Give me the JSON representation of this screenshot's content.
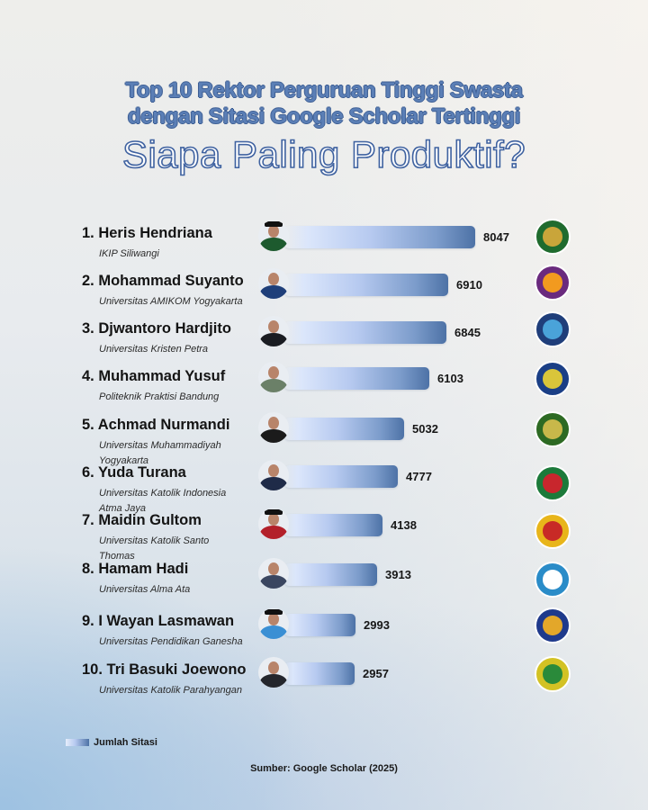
{
  "header": {
    "title_line1": "Top 10 Rektor Perguruan Tinggi Swasta",
    "title_line2": "dengan Sitasi Google Scholar Tertinggi",
    "subtitle": "Siapa Paling Produktif?"
  },
  "rows": [
    {
      "name": "1. Heris Hendriana",
      "institution": "IKIP Siliwangi",
      "value": "8047",
      "logo_color": "#1f6b2e",
      "logo_inner": "#c9a53a",
      "avatar_body": "#1d5a2e",
      "cap": true
    },
    {
      "name": "2. Mohammad Suyanto",
      "institution": "Universitas AMIKOM Yogyakarta",
      "value": "6910",
      "logo_color": "#6a2a7e",
      "logo_inner": "#f29a1f",
      "avatar_body": "#1f3f7a",
      "cap": false
    },
    {
      "name": "3. Djwantoro Hardjito",
      "institution": "Universitas Kristen Petra",
      "value": "6845",
      "logo_color": "#1f3e7a",
      "logo_inner": "#4aa3d9",
      "avatar_body": "#1a1c22",
      "cap": false
    },
    {
      "name": "4. Muhammad Yusuf",
      "institution": "Politeknik Praktisi Bandung",
      "value": "6103",
      "logo_color": "#1b3f86",
      "logo_inner": "#d9c53a",
      "avatar_body": "#6b8068",
      "cap": false
    },
    {
      "name": "5. Achmad Nurmandi",
      "institution": "Universitas Muhammadiyah Yogyakarta",
      "value": "5032",
      "logo_color": "#2d6a23",
      "logo_inner": "#c8b84a",
      "avatar_body": "#1b1b1b",
      "cap": false
    },
    {
      "name": "6. Yuda Turana",
      "institution": "Universitas Katolik Indonesia Atma Jaya",
      "value": "4777",
      "logo_color": "#1c7a3a",
      "logo_inner": "#c8262d",
      "avatar_body": "#1f2b48",
      "cap": false
    },
    {
      "name": "7. Maidin Gultom",
      "institution": "Universitas Katolik Santo Thomas",
      "value": "4138",
      "logo_color": "#e8b51a",
      "logo_inner": "#c82a26",
      "avatar_body": "#b3202a",
      "cap": true
    },
    {
      "name": "8. Hamam Hadi",
      "institution": "Universitas Alma Ata",
      "value": "3913",
      "logo_color": "#2a8cc8",
      "logo_inner": "#ffffff",
      "avatar_body": "#3a4660",
      "cap": false
    },
    {
      "name": "9. I Wayan Lasmawan",
      "institution": "Universitas Pendidikan Ganesha",
      "value": "2993",
      "logo_color": "#1f3a8c",
      "logo_inner": "#e3a72a",
      "avatar_body": "#3a8fd4",
      "cap": true
    },
    {
      "name": "10. Tri Basuki Joewono",
      "institution": "Universitas Katolik Parahyangan",
      "value": "2957",
      "logo_color": "#d3c224",
      "logo_inner": "#2a8a3a",
      "avatar_body": "#24262c",
      "cap": false
    }
  ],
  "legend": {
    "label": "Jumlah Sitasi"
  },
  "source": "Sumber: Google Scholar (2025)",
  "colors": {
    "title": "#5b7fb6",
    "title_outline": "#3e5f94",
    "bar_start": "#dbe6fb",
    "bar_end": "#4d72a6"
  },
  "chart_data": {
    "type": "bar",
    "orientation": "horizontal",
    "title": "Top 10 Rektor Perguruan Tinggi Swasta dengan Sitasi Google Scholar Tertinggi",
    "subtitle": "Siapa Paling Produktif?",
    "categories": [
      "Heris Hendriana (IKIP Siliwangi)",
      "Mohammad Suyanto (Universitas AMIKOM Yogyakarta)",
      "Djwantoro Hardjito (Universitas Kristen Petra)",
      "Muhammad Yusuf (Politeknik Praktisi Bandung)",
      "Achmad Nurmandi (Universitas Muhammadiyah Yogyakarta)",
      "Yuda Turana (Universitas Katolik Indonesia Atma Jaya)",
      "Maidin Gultom (Universitas Katolik Santo Thomas)",
      "Hamam Hadi (Universitas Alma Ata)",
      "I Wayan Lasmawan (Universitas Pendidikan Ganesha)",
      "Tri Basuki Joewono (Universitas Katolik Parahyangan)"
    ],
    "series": [
      {
        "name": "Jumlah Sitasi",
        "values": [
          8047,
          6910,
          6845,
          6103,
          5032,
          4777,
          4138,
          3913,
          2993,
          2957
        ]
      }
    ],
    "xlabel": "",
    "ylabel": "",
    "legend_position": "bottom-left",
    "grid": false,
    "source": "Sumber: Google Scholar (2025)"
  }
}
